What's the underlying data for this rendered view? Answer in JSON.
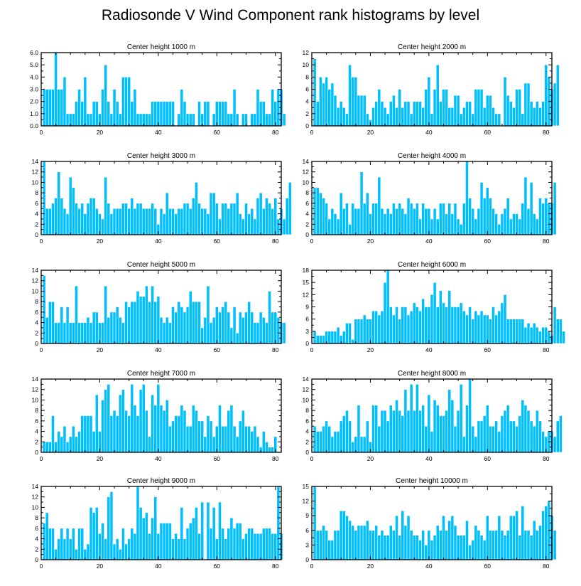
{
  "figure": {
    "title": "Radiosonde V Wind Component rank histograms by level",
    "bar_color": "#00bfff",
    "bar_edge_color": "#ffffff"
  },
  "chart_data": [
    {
      "type": "bar",
      "title": "Center height 1000 m",
      "xlim": [
        0,
        82
      ],
      "ylim": [
        0,
        6
      ],
      "xticks": [
        0,
        20,
        40,
        60,
        80
      ],
      "yticks": [
        0,
        1,
        2,
        3,
        4,
        5,
        6
      ],
      "ytick_labels": [
        "0.0",
        "1.0",
        "2.0",
        "3.0",
        "4.0",
        "5.0",
        "6.0"
      ],
      "values": [
        3,
        3,
        3,
        3,
        6,
        3,
        3,
        4,
        1,
        1,
        1,
        2,
        3,
        2,
        4,
        1,
        1,
        2,
        2,
        1,
        3,
        5,
        2,
        1,
        3,
        2,
        1,
        4,
        4,
        4,
        2,
        3,
        1,
        1,
        1,
        1,
        1,
        2,
        2,
        2,
        2,
        2,
        2,
        2,
        2,
        0,
        1,
        3,
        2,
        1,
        1,
        1,
        0,
        2,
        1,
        2,
        2,
        0,
        1,
        2,
        2,
        2,
        2,
        1,
        1,
        3,
        1,
        0,
        1,
        1,
        0,
        1,
        1,
        3,
        2,
        2,
        1,
        1,
        3,
        2,
        3,
        3,
        1
      ]
    },
    {
      "type": "bar",
      "title": "Center height 2000 m",
      "xlim": [
        0,
        82
      ],
      "ylim": [
        0,
        12
      ],
      "xticks": [
        0,
        20,
        40,
        60,
        80
      ],
      "yticks": [
        0,
        2,
        4,
        6,
        8,
        10,
        12
      ],
      "ytick_labels": [
        "0",
        "2",
        "4",
        "6",
        "8",
        "10",
        "12"
      ],
      "values": [
        11,
        4,
        8,
        7,
        8,
        6,
        7,
        5,
        3,
        4,
        3,
        2,
        10,
        8,
        8,
        5,
        5,
        5,
        2,
        1,
        3,
        4,
        6,
        4,
        3,
        2,
        4,
        5,
        3,
        6,
        3,
        4,
        4,
        2,
        4,
        4,
        4,
        3,
        6,
        8,
        2,
        6,
        10,
        4,
        6,
        6,
        3,
        3,
        5,
        5,
        2,
        3,
        4,
        4,
        2,
        6,
        6,
        6,
        3,
        5,
        5,
        3,
        2,
        2,
        0,
        8,
        5,
        4,
        3,
        6,
        6,
        2,
        7,
        7,
        4,
        3,
        4,
        3,
        4,
        10,
        8,
        6,
        7,
        10
      ]
    },
    {
      "type": "bar",
      "title": "Center height 3000 m",
      "xlim": [
        0,
        82
      ],
      "ylim": [
        0,
        14
      ],
      "xticks": [
        0,
        20,
        40,
        60,
        80
      ],
      "yticks": [
        0,
        2,
        4,
        6,
        8,
        10,
        12,
        14
      ],
      "ytick_labels": [
        "0",
        "2",
        "4",
        "6",
        "8",
        "10",
        "12",
        "14"
      ],
      "values": [
        14,
        5,
        5,
        6,
        7,
        12,
        7,
        5,
        4,
        11,
        9,
        6,
        5,
        6,
        4,
        6,
        7,
        7,
        5,
        4,
        3,
        11,
        6,
        4,
        5,
        5,
        5,
        6,
        6,
        5,
        7,
        5,
        6,
        6,
        5,
        5,
        5,
        6,
        5,
        2,
        5,
        4,
        8,
        5,
        5,
        4,
        5,
        5,
        6,
        6,
        5,
        7,
        10,
        6,
        5,
        5,
        4,
        8,
        8,
        6,
        3,
        6,
        6,
        5,
        6,
        6,
        8,
        4,
        3,
        6,
        4,
        5,
        3,
        7,
        8,
        5,
        7,
        6,
        5,
        7,
        3,
        5,
        3,
        7,
        10
      ]
    },
    {
      "type": "bar",
      "title": "Center height 4000 m",
      "xlim": [
        0,
        82
      ],
      "ylim": [
        0,
        14
      ],
      "xticks": [
        0,
        20,
        40,
        60,
        80
      ],
      "yticks": [
        0,
        2,
        4,
        6,
        8,
        10,
        12,
        14
      ],
      "ytick_labels": [
        "0",
        "2",
        "4",
        "6",
        "8",
        "10",
        "12",
        "14"
      ],
      "values": [
        9,
        9,
        8,
        7,
        6,
        3,
        5,
        4,
        3,
        8,
        5,
        6,
        2,
        6,
        5,
        5,
        12,
        6,
        8,
        4,
        6,
        6,
        11,
        5,
        4,
        5,
        4,
        6,
        5,
        6,
        5,
        4,
        7,
        6,
        5,
        6,
        3,
        6,
        5,
        5,
        3,
        5,
        3,
        6,
        6,
        4,
        6,
        4,
        6,
        3,
        2,
        6,
        14,
        7,
        5,
        3,
        5,
        10,
        7,
        9,
        7,
        5,
        4,
        2,
        4,
        5,
        7,
        3,
        4,
        4,
        3,
        6,
        11,
        5,
        10,
        4,
        3,
        7,
        6,
        7,
        6,
        6,
        10
      ]
    },
    {
      "type": "bar",
      "title": "Center height 5000 m",
      "xlim": [
        0,
        82
      ],
      "ylim": [
        0,
        14
      ],
      "xticks": [
        0,
        20,
        40,
        60,
        80
      ],
      "yticks": [
        0,
        2,
        4,
        6,
        8,
        10,
        12,
        14
      ],
      "ytick_labels": [
        "0",
        "2",
        "4",
        "6",
        "8",
        "10",
        "12",
        "14"
      ],
      "values": [
        13,
        5,
        8,
        8,
        4,
        4,
        7,
        4,
        7,
        4,
        4,
        11,
        4,
        4,
        4,
        5,
        4,
        6,
        6,
        4,
        4,
        11,
        5,
        6,
        6,
        7,
        5,
        4,
        8,
        7,
        8,
        8,
        10,
        9,
        9,
        11,
        8,
        11,
        8,
        9,
        5,
        4,
        5,
        4,
        7,
        6,
        8,
        7,
        6,
        7,
        10,
        8,
        8,
        8,
        3,
        5,
        11,
        4,
        5,
        7,
        6,
        7,
        8,
        6,
        3,
        7,
        2,
        6,
        5,
        6,
        8,
        6,
        4,
        4,
        6,
        5,
        4,
        10,
        6,
        6,
        5,
        4,
        4
      ]
    },
    {
      "type": "bar",
      "title": "Center height 6000 m",
      "xlim": [
        0,
        82
      ],
      "ylim": [
        0,
        18
      ],
      "xticks": [
        0,
        20,
        40,
        60,
        80
      ],
      "yticks": [
        0,
        3,
        6,
        9,
        12,
        15,
        18
      ],
      "ytick_labels": [
        "0",
        "3",
        "6",
        "9",
        "12",
        "15",
        "18"
      ],
      "values": [
        3,
        2,
        2,
        2,
        3,
        3,
        3,
        3,
        4,
        2,
        3,
        5,
        5,
        1,
        6,
        6,
        6,
        7,
        6,
        6,
        8,
        8,
        7,
        8,
        15,
        18,
        9,
        7,
        9,
        6,
        9,
        9,
        7,
        8,
        10,
        9,
        8,
        11,
        9,
        9,
        12,
        15,
        9,
        13,
        10,
        9,
        13,
        9,
        9,
        9,
        10,
        8,
        7,
        9,
        6,
        8,
        7,
        8,
        7,
        7,
        6,
        9,
        7,
        8,
        10,
        12,
        6,
        6,
        6,
        6,
        6,
        6,
        4,
        5,
        4,
        5,
        4,
        3,
        4,
        4,
        3,
        2,
        9,
        6,
        6,
        3
      ]
    },
    {
      "type": "bar",
      "title": "Center height 7000 m",
      "xlim": [
        0,
        82
      ],
      "ylim": [
        0,
        14
      ],
      "xticks": [
        0,
        20,
        40,
        60,
        80
      ],
      "yticks": [
        0,
        2,
        4,
        6,
        8,
        10,
        12,
        14
      ],
      "ytick_labels": [
        "0",
        "2",
        "4",
        "6",
        "8",
        "10",
        "12",
        "14"
      ],
      "values": [
        2,
        2,
        2,
        7,
        2,
        4,
        3,
        5,
        2,
        3,
        5,
        3,
        4,
        7,
        7,
        7,
        7,
        4,
        11,
        4,
        10,
        12,
        13,
        7,
        8,
        7,
        11,
        12,
        8,
        7,
        13,
        9,
        7,
        12,
        13,
        8,
        3,
        11,
        9,
        13,
        9,
        8,
        10,
        5,
        6,
        7,
        7,
        9,
        8,
        5,
        5,
        9,
        8,
        6,
        6,
        3,
        7,
        6,
        3,
        5,
        9,
        5,
        5,
        8,
        9,
        5,
        3,
        6,
        8,
        5,
        5,
        4,
        5,
        3,
        1,
        4,
        2,
        1,
        1,
        3
      ]
    },
    {
      "type": "bar",
      "title": "Center height 8000 m",
      "xlim": [
        0,
        82
      ],
      "ylim": [
        0,
        14
      ],
      "xticks": [
        0,
        20,
        40,
        60,
        80
      ],
      "yticks": [
        0,
        2,
        4,
        6,
        8,
        10,
        12,
        14
      ],
      "ytick_labels": [
        "0",
        "2",
        "4",
        "6",
        "8",
        "10",
        "12",
        "14"
      ],
      "values": [
        5,
        4,
        4,
        5,
        6,
        5,
        3,
        4,
        4,
        6,
        7,
        8,
        6,
        2,
        3,
        9,
        3,
        3,
        6,
        2,
        9,
        9,
        5,
        8,
        8,
        6,
        9,
        8,
        10,
        8,
        7,
        12,
        8,
        13,
        8,
        13,
        8,
        9,
        5,
        11,
        4,
        10,
        9,
        7,
        7,
        8,
        12,
        10,
        5,
        8,
        13,
        3,
        9,
        14,
        5,
        3,
        6,
        6,
        7,
        9,
        5,
        5,
        6,
        4,
        7,
        8,
        9,
        6,
        6,
        5,
        7,
        10,
        9,
        8,
        6,
        5,
        8,
        6,
        4,
        3,
        4,
        4,
        3,
        6,
        7
      ]
    },
    {
      "type": "bar",
      "title": "Center height 9000 m",
      "xlim": [
        0,
        82
      ],
      "ylim": [
        0,
        14
      ],
      "xticks": [
        0,
        20,
        40,
        60,
        80
      ],
      "yticks": [
        0,
        2,
        4,
        6,
        8,
        10,
        12,
        14
      ],
      "ytick_labels": [
        "0",
        "2",
        "4",
        "6",
        "8",
        "10",
        "12",
        "14"
      ],
      "values": [
        7,
        9,
        6,
        6,
        2,
        4,
        6,
        4,
        6,
        4,
        6,
        2,
        6,
        6,
        2,
        3,
        10,
        9,
        10,
        5,
        7,
        4,
        12,
        13,
        3,
        4,
        2,
        6,
        3,
        4,
        6,
        5,
        14,
        10,
        8,
        9,
        5,
        8,
        12,
        5,
        7,
        7,
        7,
        7,
        4,
        5,
        4,
        10,
        4,
        6,
        7,
        8,
        10,
        5,
        11,
        0,
        11,
        6,
        10,
        4,
        11,
        6,
        4,
        6,
        8,
        6,
        7,
        7,
        4,
        5,
        6,
        6,
        5,
        5,
        5,
        6,
        6,
        6,
        5,
        5,
        14,
        5
      ]
    },
    {
      "type": "bar",
      "title": "Center height 10000 m",
      "xlim": [
        0,
        82
      ],
      "ylim": [
        0,
        15
      ],
      "xticks": [
        0,
        20,
        40,
        60,
        80
      ],
      "yticks": [
        0,
        3,
        6,
        9,
        12,
        15
      ],
      "ytick_labels": [
        "0",
        "3",
        "6",
        "9",
        "12",
        "15"
      ],
      "values": [
        15,
        6,
        6,
        7,
        6,
        4,
        4,
        6,
        6,
        10,
        10,
        9,
        8,
        7,
        6,
        7,
        7,
        7,
        8,
        6,
        6,
        7,
        5,
        6,
        5,
        5,
        7,
        6,
        9,
        5,
        10,
        7,
        9,
        6,
        5,
        5,
        4,
        6,
        3,
        6,
        4,
        5,
        7,
        6,
        9,
        6,
        8,
        9,
        7,
        5,
        5,
        5,
        8,
        3,
        4,
        7,
        6,
        5,
        4,
        9,
        6,
        6,
        6,
        9,
        6,
        5,
        6,
        9,
        9,
        10,
        5,
        11,
        6,
        6,
        5,
        8,
        6,
        7,
        10,
        11,
        12,
        9,
        6
      ]
    }
  ]
}
